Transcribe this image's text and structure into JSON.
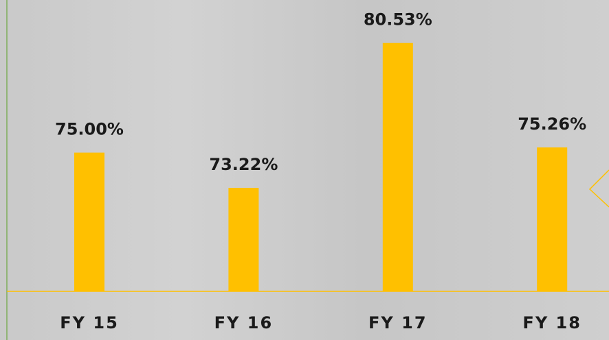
{
  "chart_data": {
    "type": "bar",
    "categories": [
      "FY 15",
      "FY 16",
      "FY 17",
      "FY 18"
    ],
    "values": [
      75,
      73.22,
      80.53,
      75.26
    ],
    "value_labels": [
      "75.00%",
      "73.22%",
      "80.53%",
      "75.26%"
    ],
    "color": "#ffc000",
    "ylim": [
      68,
      82.7
    ]
  }
}
